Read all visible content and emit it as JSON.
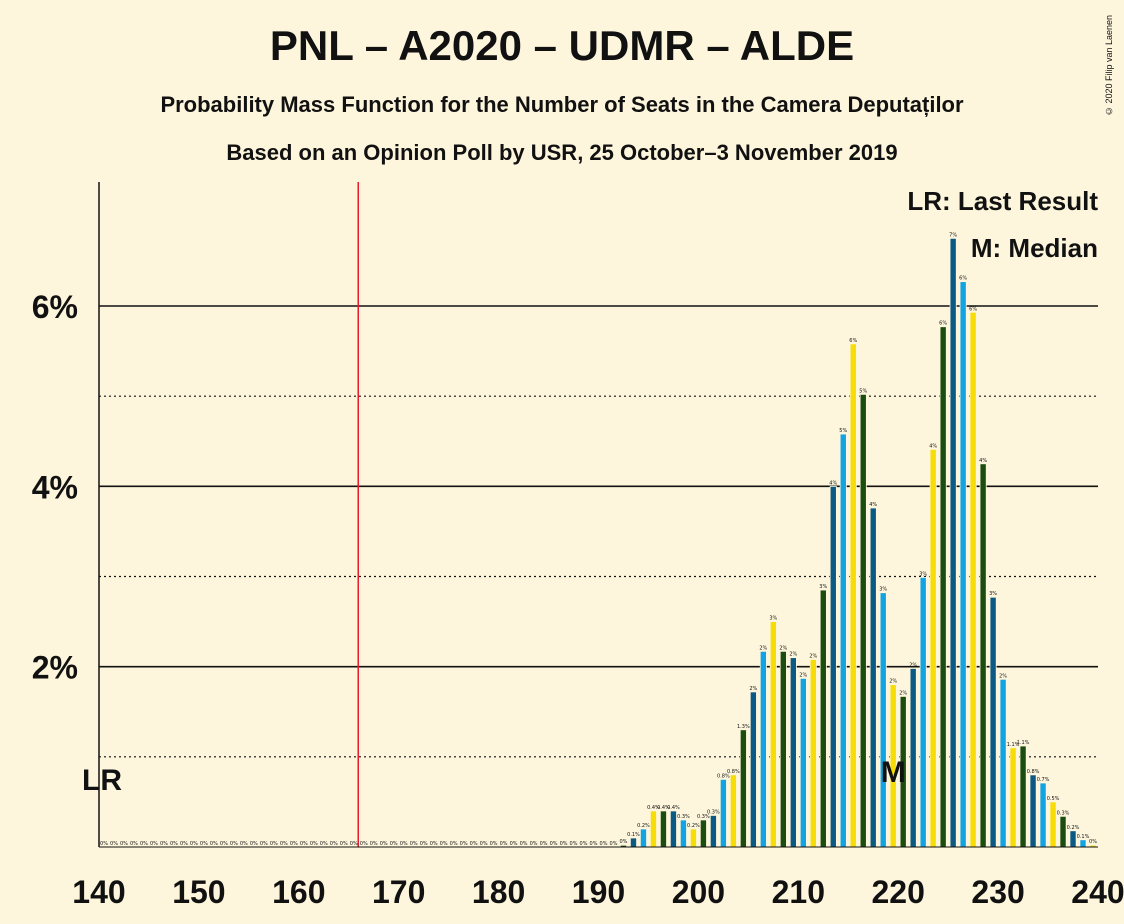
{
  "title": "PNL – A2020 – UDMR – ALDE",
  "subtitle1": "Probability Mass Function for the Number of Seats in the Camera Deputaților",
  "subtitle2": "Based on an Opinion Poll by USR, 25 October–3 November 2019",
  "copyright": "© 2020 Filip van Laenen",
  "legend": {
    "lr": "LR: Last Result",
    "m": "M: Median"
  },
  "markers": {
    "lr_label": "LR",
    "median_label": "M",
    "last_result": 166,
    "median": 219
  },
  "colors": {
    "background": "#fdf6dc",
    "dark_blue": "#0b5a85",
    "light_blue": "#11a3e2",
    "yellow": "#f7dc05",
    "green": "#1a4d0f",
    "last_result_line": "#e8192c"
  },
  "chart_data": {
    "type": "bar",
    "title": "PNL – A2020 – UDMR – ALDE",
    "xlabel": "",
    "ylabel": "",
    "xlim": [
      140,
      240
    ],
    "ylim": [
      0,
      7.4
    ],
    "x_ticks": [
      "140",
      "150",
      "160",
      "170",
      "180",
      "190",
      "200",
      "210",
      "220",
      "230",
      "240"
    ],
    "y_ticks": [
      "2%",
      "4%",
      "6%"
    ],
    "grid": "solid lines at 2%, 4%, 6%; dotted lines at 1%, 3%, 5%",
    "legend_position": "top-right",
    "color_cycle": [
      "#0b5a85",
      "#11a3e2",
      "#f7dc05",
      "#1a4d0f"
    ],
    "x": [
      140,
      141,
      142,
      143,
      144,
      145,
      146,
      147,
      148,
      149,
      150,
      151,
      152,
      153,
      154,
      155,
      156,
      157,
      158,
      159,
      160,
      161,
      162,
      163,
      164,
      165,
      166,
      167,
      168,
      169,
      170,
      171,
      172,
      173,
      174,
      175,
      176,
      177,
      178,
      179,
      180,
      181,
      182,
      183,
      184,
      185,
      186,
      187,
      188,
      189,
      190,
      191,
      192,
      193,
      194,
      195,
      196,
      197,
      198,
      199,
      200,
      201,
      202,
      203,
      204,
      205,
      206,
      207,
      208,
      209,
      210,
      211,
      212,
      213,
      214,
      215,
      216,
      217,
      218,
      219,
      220,
      221,
      222,
      223,
      224,
      225,
      226,
      227,
      228,
      229,
      230,
      231,
      232,
      233,
      234,
      235,
      236,
      237,
      238,
      239
    ],
    "values": [
      0,
      0,
      0,
      0,
      0,
      0,
      0,
      0,
      0,
      0,
      0,
      0,
      0,
      0,
      0,
      0,
      0,
      0,
      0,
      0,
      0,
      0,
      0,
      0,
      0,
      0,
      0,
      0,
      0,
      0,
      0,
      0,
      0,
      0,
      0,
      0,
      0,
      0,
      0,
      0,
      0,
      0,
      0,
      0,
      0,
      0,
      0,
      0,
      0,
      0,
      0,
      0,
      0.02,
      0.1,
      0.2,
      0.4,
      0.4,
      0.4,
      0.3,
      0.2,
      0.3,
      0.35,
      0.75,
      0.8,
      1.3,
      1.72,
      2.17,
      2.5,
      2.17,
      2.1,
      1.87,
      2.08,
      2.85,
      4.0,
      4.58,
      5.58,
      5.02,
      3.76,
      2.82,
      1.8,
      1.67,
      1.98,
      2.99,
      4.41,
      5.77,
      6.75,
      6.27,
      5.93,
      4.25,
      2.77,
      1.86,
      1.1,
      1.12,
      0.8,
      0.71,
      0.5,
      0.34,
      0.18,
      0.08,
      0.02
    ],
    "labels": [
      "0%",
      "0%",
      "0%",
      "0%",
      "0%",
      "0%",
      "0%",
      "0%",
      "0%",
      "0%",
      "0%",
      "0%",
      "0%",
      "0%",
      "0%",
      "0%",
      "0%",
      "0%",
      "0%",
      "0%",
      "0%",
      "0%",
      "0%",
      "0%",
      "0%",
      "0%",
      "0%",
      "0%",
      "0%",
      "0%",
      "0%",
      "0%",
      "0%",
      "0%",
      "0%",
      "0%",
      "0%",
      "0%",
      "0%",
      "0%",
      "0%",
      "0%",
      "0%",
      "0%",
      "0%",
      "0%",
      "0%",
      "0%",
      "0%",
      "0%",
      "0%",
      "0%",
      "0%",
      "0.1%",
      "0.2%",
      "0.4%",
      "0.4%",
      "0.4%",
      "0.3%",
      "0.2%",
      "0.3%",
      "0.3%",
      "0.8%",
      "0.8%",
      "1.3%",
      "2%",
      "2%",
      "3%",
      "2%",
      "2%",
      "2%",
      "2%",
      "3%",
      "4%",
      "5%",
      "6%",
      "5%",
      "4%",
      "3%",
      "2%",
      "2%",
      "2%",
      "3%",
      "4%",
      "6%",
      "7%",
      "6%",
      "6%",
      "4%",
      "3%",
      "2%",
      "1.1%",
      "1.1%",
      "0.8%",
      "0.7%",
      "0.5%",
      "0.3%",
      "0.2%",
      "0.1%",
      "0%"
    ]
  }
}
